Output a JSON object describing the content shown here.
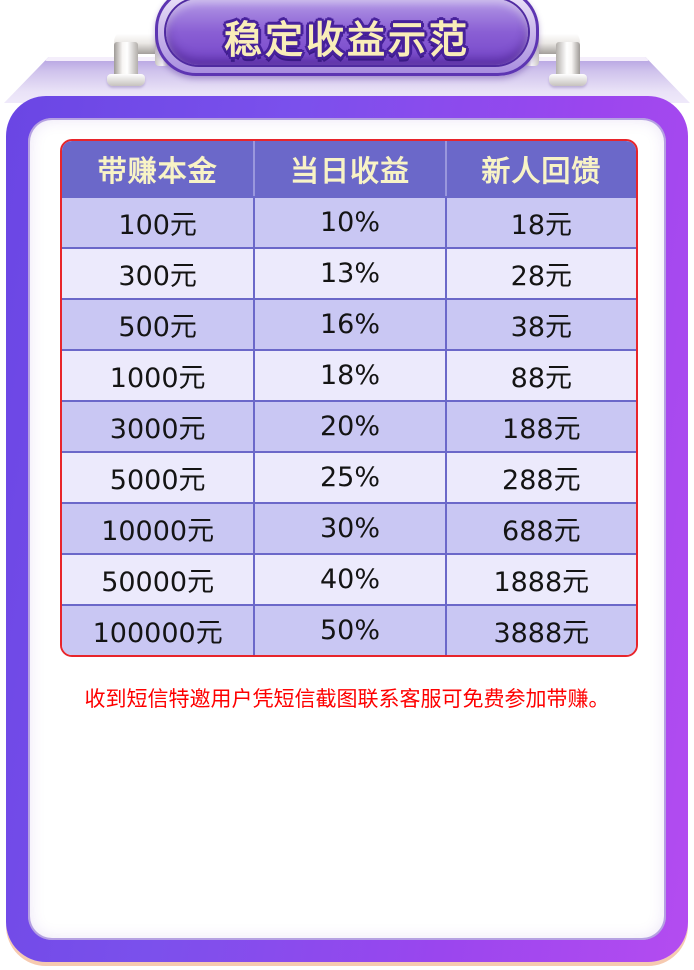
{
  "banner": {
    "title": "稳定收益示范"
  },
  "table": {
    "columns": [
      "带赚本金",
      "当日收益",
      "新人回馈"
    ],
    "rows": [
      [
        "100元",
        "10%",
        "18元"
      ],
      [
        "300元",
        "13%",
        "28元"
      ],
      [
        "500元",
        "16%",
        "38元"
      ],
      [
        "1000元",
        "18%",
        "88元"
      ],
      [
        "3000元",
        "20%",
        "188元"
      ],
      [
        "5000元",
        "25%",
        "288元"
      ],
      [
        "10000元",
        "30%",
        "688元"
      ],
      [
        "50000元",
        "40%",
        "1888元"
      ],
      [
        "100000元",
        "50%",
        "3888元"
      ]
    ]
  },
  "notice": "收到短信特邀用户凭短信截图联系客服可免费参加带赚。",
  "colors": {
    "accent_purple": "#6b68c9",
    "row_dark": "#c9c7f3",
    "row_light": "#eceafc",
    "table_border_red": "#e8252b",
    "frame_gradient_left": "#6a46e4",
    "frame_gradient_right": "#b44cf0",
    "header_text": "#f8f3c6",
    "banner_text_gold": "#f9edb9",
    "notice_red": "#fe0000"
  }
}
